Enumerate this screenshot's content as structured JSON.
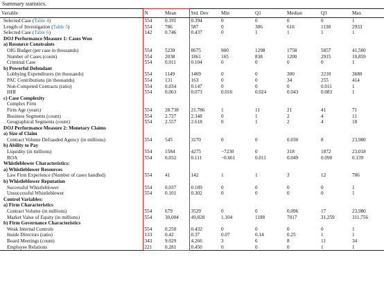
{
  "caption": "Summary statistics.",
  "columns": [
    "Variable",
    "N",
    "Mean",
    "Std. Dev",
    "Min",
    "Q1",
    "Median",
    "Q3",
    "Max"
  ],
  "rows": [
    {
      "kind": "data",
      "indent": 0,
      "label": "Selected Case",
      "ref": "Table 4",
      "values": [
        "554",
        "0.191",
        "0.394",
        "0",
        "0",
        "0",
        "0",
        "1"
      ]
    },
    {
      "kind": "data",
      "indent": 0,
      "label": "Length of Investigation",
      "ref": "Table 5",
      "values": [
        "554",
        "786",
        "587",
        "0",
        "306",
        "616",
        "1138",
        "2933"
      ]
    },
    {
      "kind": "data",
      "indent": 0,
      "label": "Selected Case",
      "ref": "Table 6",
      "values": [
        "142",
        "0.746",
        "0.437",
        "0",
        "1",
        "1",
        "1",
        "1"
      ]
    },
    {
      "kind": "head",
      "indent": 0,
      "label": "DOJ Performance Measure 1: Cases Won"
    },
    {
      "kind": "head",
      "indent": 0,
      "label": "a) Resource Constraints"
    },
    {
      "kind": "data",
      "indent": 1,
      "label": "OIG Budget (per case in thousands)",
      "values": [
        "554",
        "5239",
        "8675",
        "900",
        "1298",
        "1758",
        "5857",
        "41,500"
      ]
    },
    {
      "kind": "data",
      "indent": 1,
      "label": "Number of Cases (count)",
      "values": [
        "554",
        "2038",
        "1861",
        "165",
        "838",
        "1200",
        "2915",
        "10,859"
      ]
    },
    {
      "kind": "data",
      "indent": 1,
      "label": "Criminal Case",
      "values": [
        "554",
        "0.011",
        "0.104",
        "0",
        "0",
        "0",
        "0",
        "1"
      ]
    },
    {
      "kind": "head",
      "indent": 0,
      "label": "b) Powerful Defendant"
    },
    {
      "kind": "data",
      "indent": 1,
      "label": "Lobbying Expenditures (in thousands)",
      "values": [
        "554",
        "1149",
        "1469",
        "0",
        "0",
        "300",
        "2210",
        "3680"
      ]
    },
    {
      "kind": "data",
      "indent": 1,
      "label": "PAC Contributions (in thousands)",
      "values": [
        "554",
        "131",
        "163",
        "0",
        "0",
        "34",
        "255",
        "414"
      ]
    },
    {
      "kind": "data",
      "indent": 1,
      "label": "Non-Competed Contracts (ratio)",
      "values": [
        "554",
        "0.034",
        "0.147",
        "0",
        "0",
        "0",
        "0.011",
        "1"
      ]
    },
    {
      "kind": "data",
      "indent": 1,
      "label": "HHI",
      "values": [
        "554",
        "0.063",
        "0.073",
        "0.016",
        "0.024",
        "0.043",
        "0.083",
        "1"
      ]
    },
    {
      "kind": "head",
      "indent": 0,
      "label": "c) Case Complexity"
    },
    {
      "kind": "plain",
      "indent": 1,
      "label": "Complex Firm"
    },
    {
      "kind": "data",
      "indent": 1,
      "label": "Firm Age (years)",
      "values": [
        "554",
        "28.738",
        "21.786",
        "1",
        "11",
        "21",
        "41",
        "71"
      ]
    },
    {
      "kind": "data",
      "indent": 1,
      "label": "Business Segments (count)",
      "values": [
        "554",
        "2.727",
        "2.348",
        "0",
        "1",
        "2",
        "4",
        "11"
      ]
    },
    {
      "kind": "data",
      "indent": 1,
      "label": "Geographical Segments (count)",
      "values": [
        "554",
        "2.557",
        "2.618",
        "0",
        "1",
        "2",
        "4",
        "18"
      ]
    },
    {
      "kind": "head",
      "indent": 0,
      "label": "DOJ Performance Measure 2: Monetary Claims"
    },
    {
      "kind": "head",
      "indent": 0,
      "label": "a) Size of Claim"
    },
    {
      "kind": "data",
      "indent": 1,
      "label": "Contract Volume Defrauded Agency (in millions)",
      "values": [
        "554",
        "545",
        "3170",
        "0",
        "0",
        "0.030",
        "8",
        "23,980"
      ]
    },
    {
      "kind": "head",
      "indent": 0,
      "label": "b) Ability to Pay"
    },
    {
      "kind": "data",
      "indent": 1,
      "label": "Liquidity (in millions)",
      "values": [
        "554",
        "1584",
        "4275",
        "−7230",
        "0",
        "318",
        "1872",
        "23,018"
      ]
    },
    {
      "kind": "data",
      "indent": 1,
      "label": "ROA",
      "values": [
        "554",
        "0.032",
        "0.111",
        "−0.661",
        "0.011",
        "0.049",
        "0.090",
        "0.139"
      ]
    },
    {
      "kind": "head",
      "indent": 0,
      "label": "Whistleblower Characteristics:"
    },
    {
      "kind": "head",
      "indent": 0,
      "label": "a) Whistleblower Resources"
    },
    {
      "kind": "data",
      "indent": 1,
      "label": "Law Firm Experience (Number of cases handled)",
      "values": [
        "554",
        "41",
        "142",
        "1",
        "1",
        "3",
        "12",
        "786"
      ]
    },
    {
      "kind": "head",
      "indent": 0,
      "label": "b) Whistleblower Reputation"
    },
    {
      "kind": "data",
      "indent": 1,
      "label": "Successful Whistleblower",
      "values": [
        "554",
        "0.037",
        "0.189",
        "0",
        "0",
        "0",
        "0",
        "1"
      ]
    },
    {
      "kind": "data",
      "indent": 1,
      "label": "Unsuccessful Whistleblower",
      "values": [
        "554",
        "0.101",
        "0.302",
        "0",
        "0",
        "0",
        "0",
        "1"
      ]
    },
    {
      "kind": "head",
      "indent": 0,
      "label": "Control Variables:"
    },
    {
      "kind": "head",
      "indent": 0,
      "label": "a) Firm Characteristics"
    },
    {
      "kind": "data",
      "indent": 1,
      "label": "Contract Volume (in millions)",
      "values": [
        "554",
        "679",
        "3529",
        "0",
        "0",
        "0.096",
        "17",
        "23,980"
      ]
    },
    {
      "kind": "data",
      "indent": 1,
      "label": "Market Value of Equity (in millions)",
      "values": [
        "554",
        "30,004",
        "49,828",
        "1.104",
        "1198",
        "7017",
        "31,259",
        "311,756"
      ]
    },
    {
      "kind": "head",
      "indent": 0,
      "label": "b) Firm Governance Characteristics"
    },
    {
      "kind": "data",
      "indent": 1,
      "label": "Weak Internal Controls",
      "values": [
        "554",
        "0.250",
        "0.432",
        "0",
        "0",
        "0",
        "0",
        "1"
      ]
    },
    {
      "kind": "data",
      "indent": 1,
      "label": "Inside Directors (ratio)",
      "values": [
        "133",
        "0.42",
        "0.37",
        "0.07",
        "0.14",
        "0.25",
        "1",
        "1"
      ]
    },
    {
      "kind": "data",
      "indent": 1,
      "label": "Board Meetings (count)",
      "values": [
        "343",
        "9.029",
        "4.266",
        "3",
        "6",
        "8",
        "11",
        "34"
      ]
    },
    {
      "kind": "data",
      "indent": 1,
      "label": "Employee Relations",
      "values": [
        "221",
        "0.281",
        "0.450",
        "0",
        "0",
        "0",
        "1",
        "1"
      ]
    }
  ],
  "highlight_color": "#e0242a",
  "link_color": "#2b73b6"
}
